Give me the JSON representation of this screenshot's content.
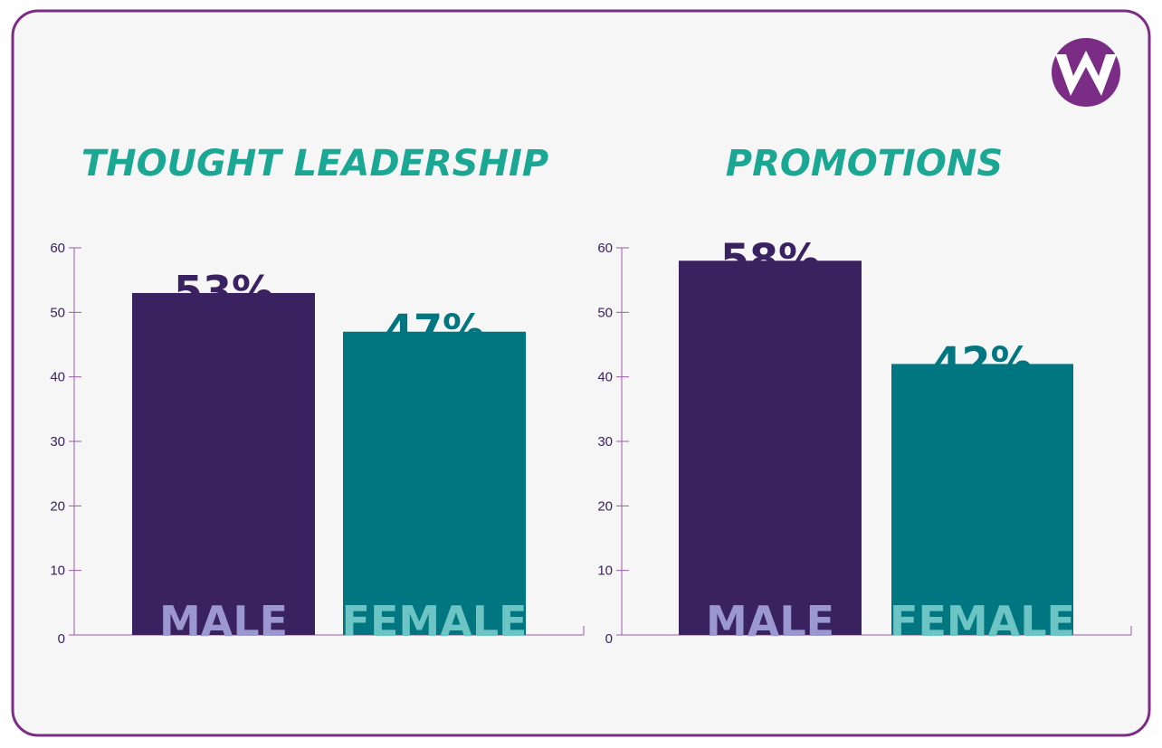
{
  "chart_data": [
    {
      "type": "bar",
      "title": "THOUGHT LEADERSHIP",
      "categories": [
        "MALE",
        "FEMALE"
      ],
      "values": [
        53,
        47
      ],
      "value_labels": [
        "53%",
        "47%"
      ],
      "colors": [
        "#3a2260",
        "#007681"
      ],
      "category_label_colors": [
        "#9b97d0",
        "#6cc5c4"
      ],
      "ylim": [
        0,
        60
      ],
      "yticks": [
        0,
        10,
        20,
        30,
        40,
        50,
        60
      ]
    },
    {
      "type": "bar",
      "title": "PROMOTIONS",
      "categories": [
        "MALE",
        "FEMALE"
      ],
      "values": [
        58,
        42
      ],
      "value_labels": [
        "58%",
        "42%"
      ],
      "colors": [
        "#3a2260",
        "#007681"
      ],
      "category_label_colors": [
        "#9b97d0",
        "#6cc5c4"
      ],
      "ylim": [
        0,
        60
      ],
      "yticks": [
        0,
        10,
        20,
        30,
        40,
        50,
        60
      ]
    }
  ]
}
